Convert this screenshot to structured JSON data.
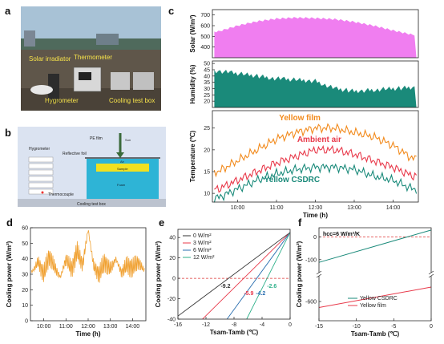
{
  "panel_labels": {
    "a": "a",
    "b": "b",
    "c": "c",
    "d": "d",
    "e": "e",
    "f": "f"
  },
  "photo_labels": {
    "solar": "Solar irradiator",
    "thermometer": "Thermometer",
    "hygrometer": "Hygrometer",
    "cooling_box": "Cooling test box"
  },
  "schematic_labels": {
    "hygrometer": "Hygrometer",
    "reflective_foil": "Reflective foil",
    "pe_film": "PE film",
    "sun": "Sun",
    "air": "Air",
    "sample": "Sample",
    "foam": "Foam",
    "thermocouple": "Thermocouple",
    "cooling_box": "Cooling test box"
  },
  "colors": {
    "solar_fill": "#f07ef0",
    "humidity_fill": "#1a8a7a",
    "yellow_film": "#f28a1c",
    "ambient_air": "#e8394a",
    "yellow_csdrc": "#1a8a7a",
    "cooling": "#f0a030",
    "line_0": "#333333",
    "line_3": "#e8394a",
    "line_6": "#2a6fb0",
    "line_12": "#2eb08a"
  },
  "chart_data": [
    {
      "id": "c-solar",
      "type": "area",
      "ylabel": "Solar (W/m²)",
      "ylim": [
        300,
        750
      ],
      "yticks": [
        400,
        500,
        600,
        700
      ],
      "x_hours": [
        9.5,
        10,
        10.5,
        11,
        11.5,
        12,
        12.5,
        13,
        13.5,
        14,
        14.5
      ],
      "values": [
        545,
        600,
        640,
        665,
        675,
        670,
        660,
        635,
        600,
        555,
        515
      ]
    },
    {
      "id": "c-humidity",
      "type": "area",
      "ylabel": "Humidity (%)",
      "ylim": [
        15,
        52
      ],
      "yticks": [
        20,
        25,
        30,
        35,
        40,
        45,
        50
      ],
      "x_hours": [
        9.5,
        10,
        10.5,
        11,
        11.5,
        12,
        12.5,
        13,
        13.5,
        14,
        14.5
      ],
      "values": [
        44,
        42,
        40,
        38,
        37,
        36,
        30,
        28,
        29,
        30,
        31
      ]
    },
    {
      "id": "c-temp",
      "type": "line",
      "ylabel": "Temperature (℃)",
      "xlabel": "Time (h)",
      "ylim": [
        8,
        29
      ],
      "yticks": [
        10,
        15,
        20,
        25
      ],
      "xticks": [
        "10:00",
        "11:00",
        "12:00",
        "13:00",
        "14:00"
      ],
      "series": [
        {
          "name": "Yellow film",
          "x_hours": [
            9.5,
            10,
            10.5,
            11,
            11.5,
            12,
            12.5,
            13,
            13.5,
            14,
            14.5
          ],
          "values": [
            15,
            17.5,
            20,
            22.5,
            24,
            25,
            25,
            24,
            23,
            21,
            18
          ]
        },
        {
          "name": "Ambient air",
          "x_hours": [
            9.5,
            10,
            10.5,
            11,
            11.5,
            12,
            12.5,
            13,
            13.5,
            14,
            14.5
          ],
          "values": [
            11,
            13,
            15,
            17,
            18.5,
            20,
            20,
            19,
            17.5,
            16,
            14
          ]
        },
        {
          "name": "Yellow CSDRC",
          "x_hours": [
            9.5,
            10,
            10.5,
            11,
            11.5,
            12,
            12.5,
            13,
            13.5,
            14,
            14.5
          ],
          "values": [
            9,
            11,
            13,
            14.5,
            15.5,
            16,
            16,
            15.5,
            14,
            13,
            11
          ]
        }
      ]
    },
    {
      "id": "d-cooling",
      "type": "line",
      "xlabel": "Time (h)",
      "ylabel": "Cooling power (W/m²)",
      "ylim": [
        0,
        60
      ],
      "yticks": [
        0,
        10,
        20,
        30,
        40,
        50,
        60
      ],
      "xticks": [
        "10:00",
        "11:00",
        "12:00",
        "13:00",
        "14:00"
      ],
      "x_hours": [
        9.5,
        9.75,
        10,
        10.25,
        10.5,
        10.75,
        11,
        11.25,
        11.5,
        11.75,
        12,
        12.25,
        12.5,
        12.75,
        13,
        13.25,
        13.5,
        13.75,
        14,
        14.25,
        14.5
      ],
      "values": [
        32,
        38,
        30,
        42,
        34,
        28,
        40,
        33,
        45,
        36,
        59,
        35,
        30,
        38,
        33,
        40,
        31,
        36,
        34,
        38,
        33
      ]
    },
    {
      "id": "e-lines",
      "type": "line",
      "xlabel": "Tsam-Tamb (℃)",
      "ylabel": "Cooling power (W/m²)",
      "xlim": [
        -16,
        0
      ],
      "ylim": [
        -40,
        48
      ],
      "xticks": [
        -16,
        -12,
        -8,
        -4,
        0
      ],
      "yticks": [
        -40,
        -20,
        0,
        20,
        40
      ],
      "zero_line": 0,
      "series": [
        {
          "name": "0 W/m²",
          "x": [
            -16,
            0
          ],
          "values": [
            -37,
            45
          ]
        },
        {
          "name": "3 W/m²",
          "x": [
            -12.5,
            0
          ],
          "values": [
            -40,
            45
          ]
        },
        {
          "name": "6 W/m²",
          "x": [
            -9,
            0
          ],
          "values": [
            -40,
            45
          ]
        },
        {
          "name": "12 W/m²",
          "x": [
            -6.2,
            0
          ],
          "values": [
            -40,
            45
          ]
        }
      ],
      "annotations": [
        {
          "text": "-9.2",
          "x": -9.2,
          "y": -9.5
        },
        {
          "text": "-5.9",
          "x": -5.9,
          "y": -16.5
        },
        {
          "text": "-4.2",
          "x": -4.2,
          "y": -16.5
        },
        {
          "text": "-2.6",
          "x": -2.6,
          "y": -9.5
        }
      ]
    },
    {
      "id": "f-lines",
      "type": "line",
      "xlabel": "Tsam-Tamb (℃)",
      "ylabel": "Cooling power (W/m²)",
      "xlim": [
        -15,
        0
      ],
      "xticks": [
        -15,
        -10,
        -5,
        0
      ],
      "top_ylim": [
        -150,
        40
      ],
      "top_yticks": [
        -100,
        0
      ],
      "bottom_ylim": [
        -760,
        -400
      ],
      "bottom_yticks": [
        -600
      ],
      "note": "hcc=6 W/m²/K",
      "series": [
        {
          "name": "Yellow CSDRC",
          "x": [
            -15,
            0
          ],
          "values": [
            -112,
            30
          ]
        },
        {
          "name": "Yellow film",
          "x": [
            -15,
            0
          ],
          "values": [
            -650,
            -480
          ]
        }
      ]
    }
  ]
}
